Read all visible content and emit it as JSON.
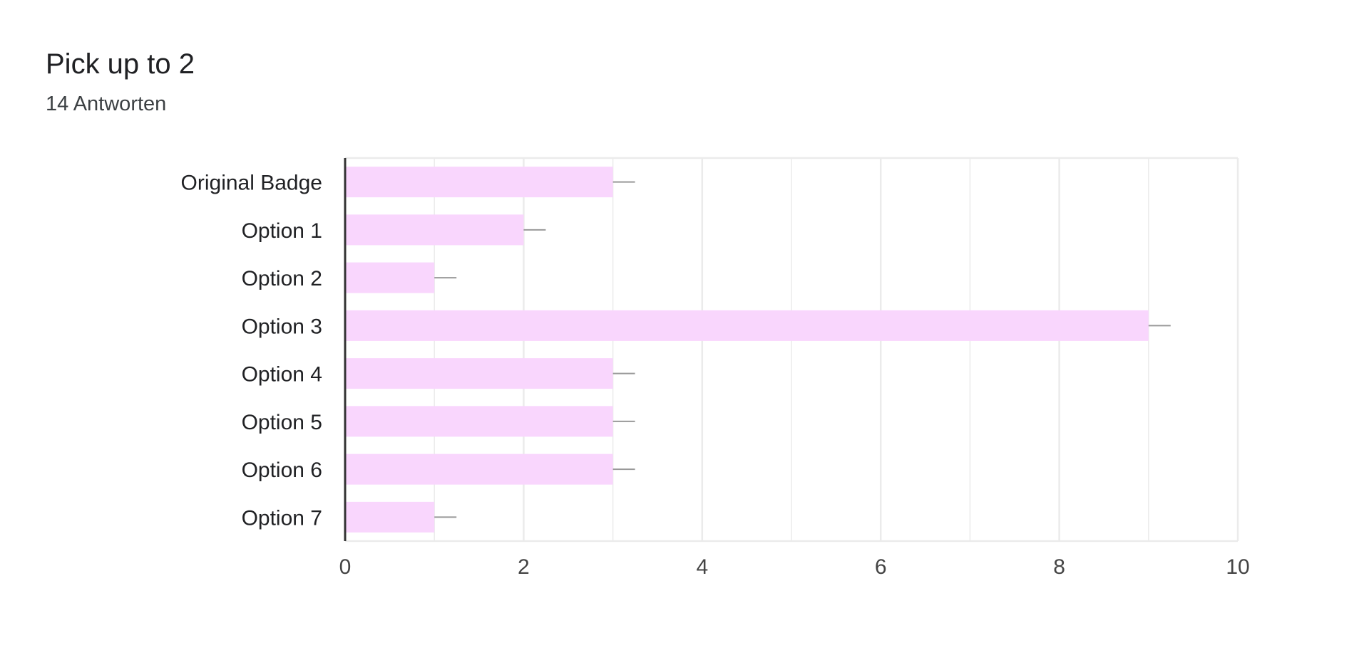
{
  "question": {
    "title": "Pick up to 2",
    "response_count": "14 Antworten"
  },
  "colors": {
    "bar": "#f9d6fd",
    "error_bar": "#999999",
    "grid": "#ebebeb",
    "axis": "#333333"
  },
  "chart_data": {
    "type": "bar",
    "orientation": "horizontal",
    "title": "Pick up to 2",
    "subtitle": "14 Antworten",
    "xlabel": "",
    "ylabel": "",
    "categories": [
      "Original Badge",
      "Option 1",
      "Option 2",
      "Option 3",
      "Option 4",
      "Option 5",
      "Option 6",
      "Option 7"
    ],
    "values": [
      3,
      2,
      1,
      9,
      3,
      3,
      3,
      1
    ],
    "error_bars": true,
    "xlim": [
      0,
      10
    ],
    "xticks": [
      0,
      2,
      4,
      6,
      8,
      10
    ],
    "grid": true,
    "legend": "none"
  }
}
